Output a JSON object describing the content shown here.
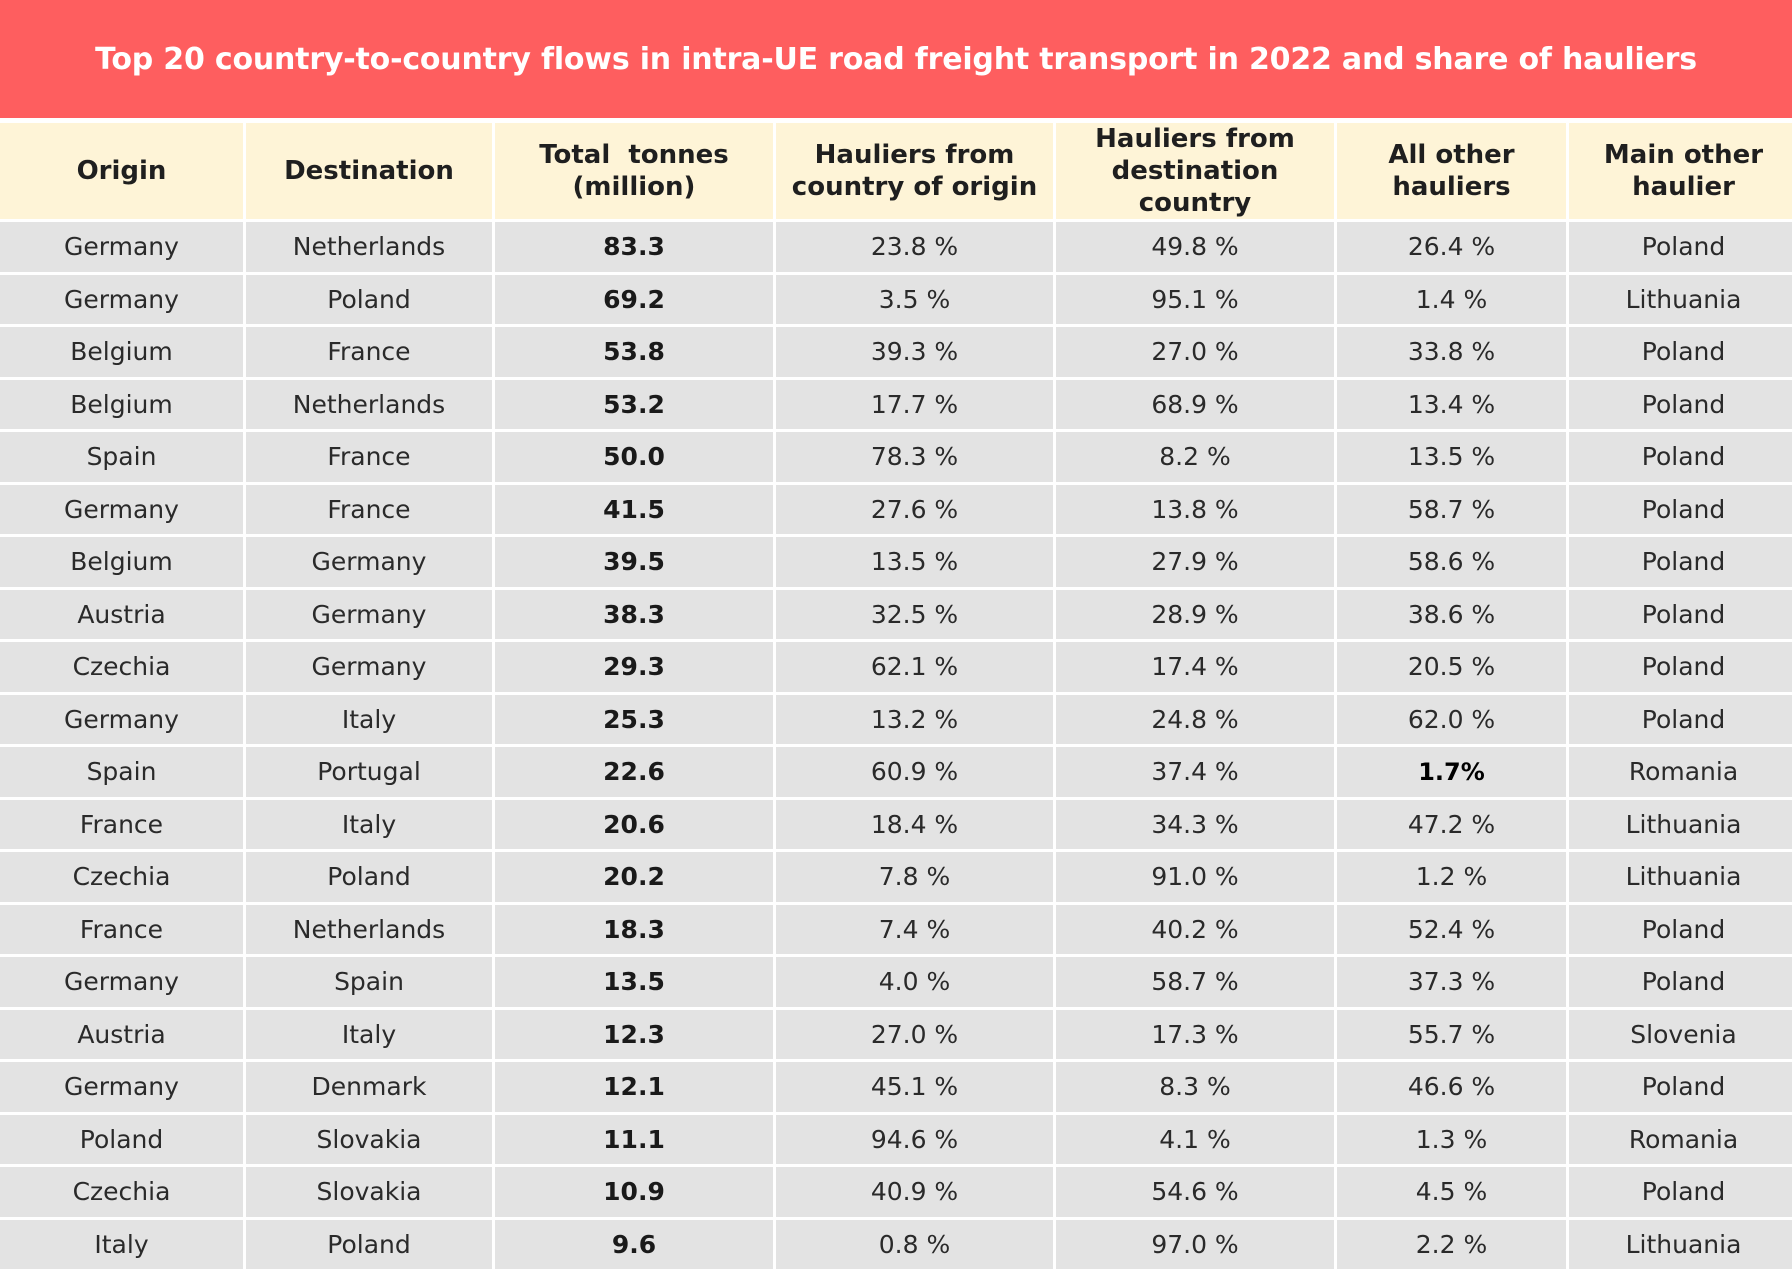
{
  "title": "Top 20 country-to-country flows in intra-UE road freight transport in 2022 and share of hauliers",
  "headers": {
    "origin": "Origin",
    "destination": "Destination",
    "tonnes": [
      "Total  tonnes",
      "(million)"
    ],
    "hauliers_origin": [
      "Hauliers from",
      "country of origin"
    ],
    "hauliers_dest": [
      "Hauliers from",
      "destination country"
    ],
    "all_other": [
      "All other",
      "hauliers"
    ],
    "main_other": [
      "Main other",
      "haulier"
    ]
  },
  "rows": [
    {
      "origin": "Germany",
      "destination": "Netherlands",
      "tonnes": "83.3",
      "h_origin": "23.8 %",
      "h_dest": "49.8 %",
      "h_other": "26.4 %",
      "main_other": "Poland"
    },
    {
      "origin": "Germany",
      "destination": "Poland",
      "tonnes": "69.2",
      "h_origin": "3.5 %",
      "h_dest": "95.1 %",
      "h_other": "1.4 %",
      "main_other": "Lithuania"
    },
    {
      "origin": "Belgium",
      "destination": "France",
      "tonnes": "53.8",
      "h_origin": "39.3 %",
      "h_dest": "27.0 %",
      "h_other": "33.8 %",
      "main_other": "Poland"
    },
    {
      "origin": "Belgium",
      "destination": "Netherlands",
      "tonnes": "53.2",
      "h_origin": "17.7 %",
      "h_dest": "68.9 %",
      "h_other": "13.4 %",
      "main_other": "Poland"
    },
    {
      "origin": "Spain",
      "destination": "France",
      "tonnes": "50.0",
      "h_origin": "78.3 %",
      "h_dest": "8.2 %",
      "h_other": "13.5 %",
      "main_other": "Poland"
    },
    {
      "origin": "Germany",
      "destination": "France",
      "tonnes": "41.5",
      "h_origin": "27.6 %",
      "h_dest": "13.8 %",
      "h_other": "58.7 %",
      "main_other": "Poland"
    },
    {
      "origin": "Belgium",
      "destination": "Germany",
      "tonnes": "39.5",
      "h_origin": "13.5 %",
      "h_dest": "27.9 %",
      "h_other": "58.6 %",
      "main_other": "Poland"
    },
    {
      "origin": "Austria",
      "destination": "Germany",
      "tonnes": "38.3",
      "h_origin": "32.5 %",
      "h_dest": "28.9 %",
      "h_other": "38.6 %",
      "main_other": "Poland"
    },
    {
      "origin": "Czechia",
      "destination": "Germany",
      "tonnes": "29.3",
      "h_origin": "62.1 %",
      "h_dest": "17.4 %",
      "h_other": "20.5 %",
      "main_other": "Poland"
    },
    {
      "origin": "Germany",
      "destination": "Italy",
      "tonnes": "25.3",
      "h_origin": "13.2 %",
      "h_dest": "24.8 %",
      "h_other": "62.0 %",
      "main_other": "Poland"
    },
    {
      "origin": "Spain",
      "destination": "Portugal",
      "tonnes": "22.6",
      "h_origin": "60.9 %",
      "h_dest": "37.4 %",
      "h_other": "1.7%",
      "main_other": "Romania"
    },
    {
      "origin": "France",
      "destination": "Italy",
      "tonnes": "20.6",
      "h_origin": "18.4 %",
      "h_dest": "34.3 %",
      "h_other": "47.2 %",
      "main_other": "Lithuania"
    },
    {
      "origin": "Czechia",
      "destination": "Poland",
      "tonnes": "20.2",
      "h_origin": "7.8 %",
      "h_dest": "91.0 %",
      "h_other": "1.2 %",
      "main_other": "Lithuania"
    },
    {
      "origin": "France",
      "destination": "Netherlands",
      "tonnes": "18.3",
      "h_origin": "7.4 %",
      "h_dest": "40.2 %",
      "h_other": "52.4 %",
      "main_other": "Poland"
    },
    {
      "origin": "Germany",
      "destination": "Spain",
      "tonnes": "13.5",
      "h_origin": "4.0 %",
      "h_dest": "58.7 %",
      "h_other": "37.3 %",
      "main_other": "Poland"
    },
    {
      "origin": "Austria",
      "destination": "Italy",
      "tonnes": "12.3",
      "h_origin": "27.0 %",
      "h_dest": "17.3 %",
      "h_other": "55.7 %",
      "main_other": "Slovenia"
    },
    {
      "origin": "Germany",
      "destination": "Denmark",
      "tonnes": "12.1",
      "h_origin": "45.1 %",
      "h_dest": "8.3 %",
      "h_other": "46.6 %",
      "main_other": "Poland"
    },
    {
      "origin": "Poland",
      "destination": "Slovakia",
      "tonnes": "11.1",
      "h_origin": "94.6 %",
      "h_dest": "4.1 %",
      "h_other": "1.3 %",
      "main_other": "Romania"
    },
    {
      "origin": "Czechia",
      "destination": "Slovakia",
      "tonnes": "10.9",
      "h_origin": "40.9 %",
      "h_dest": "54.6 %",
      "h_other": "4.5 %",
      "main_other": "Poland"
    },
    {
      "origin": "Italy",
      "destination": "Poland",
      "tonnes": "9.6",
      "h_origin": "0.8 %",
      "h_dest": "97.0 %",
      "h_other": "2.2 %",
      "main_other": "Lithuania"
    }
  ],
  "colors": {
    "banner": "#fe5e5f",
    "header_bg": "#fef4d7",
    "cell_bg": "#e3e3e3"
  }
}
